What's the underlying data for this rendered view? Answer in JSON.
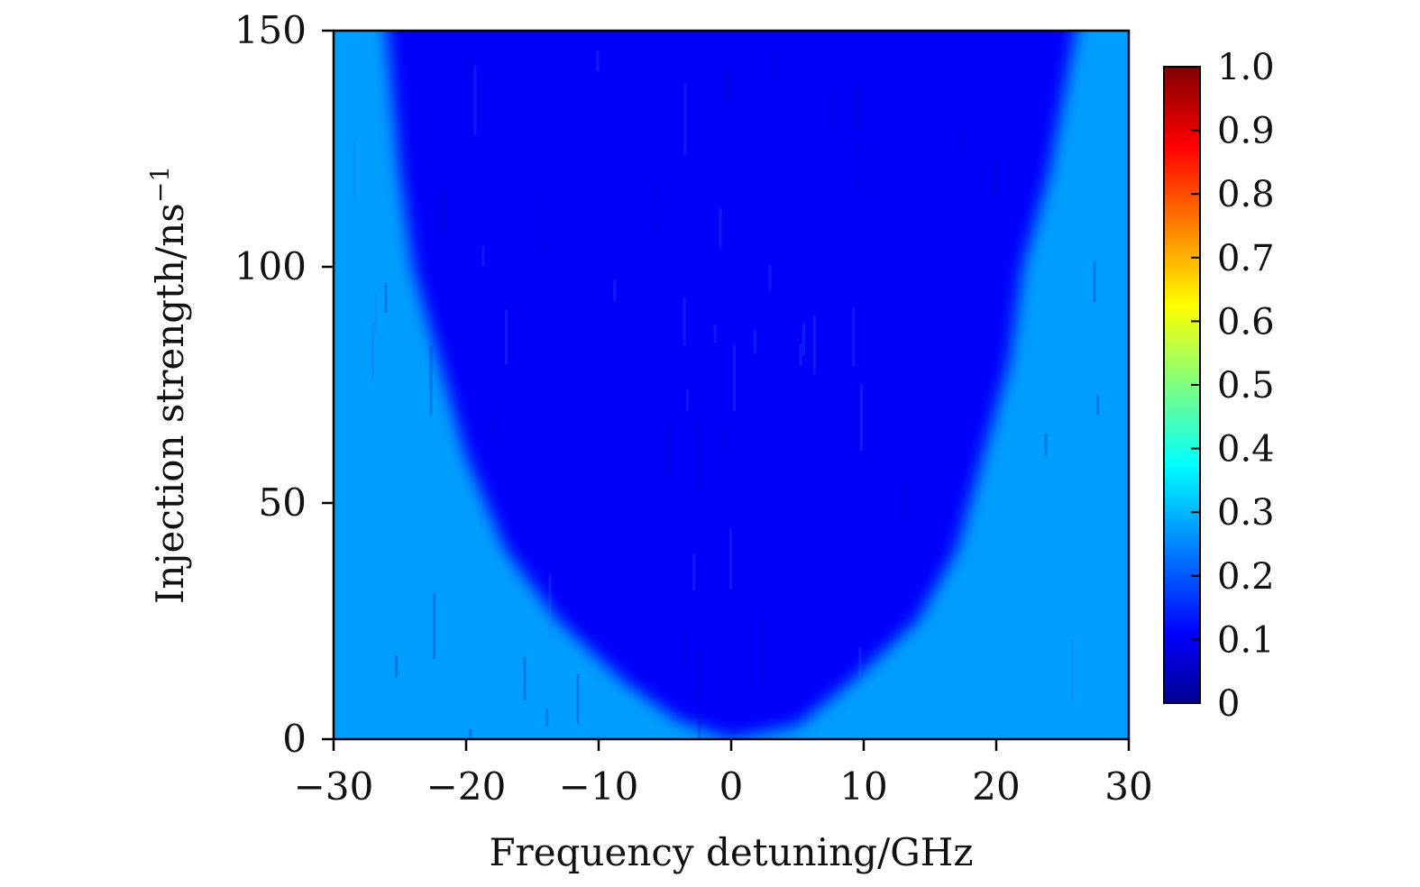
{
  "chart_data": {
    "type": "heatmap",
    "title": "",
    "xlabel": "Frequency detuning/GHz",
    "ylabel_main": "Injection strength/ns",
    "ylabel_sup": "−1",
    "xlim": [
      -30,
      30
    ],
    "ylim": [
      0,
      150
    ],
    "x_ticks": [
      -30,
      -20,
      -10,
      0,
      10,
      20,
      30
    ],
    "x_tick_labels": [
      "−30",
      "−20",
      "−10",
      "0",
      "10",
      "20",
      "30"
    ],
    "y_ticks": [
      0,
      50,
      100,
      150
    ],
    "y_tick_labels": [
      "0",
      "50",
      "100",
      "150"
    ],
    "grid": false,
    "colormap": "jet",
    "colorbar": {
      "range": [
        0,
        1.0
      ],
      "ticks": [
        0,
        0.1,
        0.2,
        0.3,
        0.4,
        0.5,
        0.6,
        0.7,
        0.8,
        0.9,
        1.0
      ],
      "tick_labels": [
        "0",
        "0.1",
        "0.2",
        "0.3",
        "0.4",
        "0.5",
        "0.6",
        "0.7",
        "0.8",
        "0.9",
        "1.0"
      ]
    },
    "region": {
      "description_values": {
        "low_region_value": 0.12,
        "high_region_value": 0.28,
        "low_region_boundary": [
          [
            -26,
            150
          ],
          [
            -25,
            120
          ],
          [
            -24,
            100
          ],
          [
            -22,
            80
          ],
          [
            -20,
            60
          ],
          [
            -17,
            40
          ],
          [
            -13,
            25
          ],
          [
            -8,
            12
          ],
          [
            -4,
            4
          ],
          [
            0,
            0
          ],
          [
            5,
            3
          ],
          [
            9,
            12
          ],
          [
            14,
            25
          ],
          [
            17,
            40
          ],
          [
            19,
            60
          ],
          [
            21,
            80
          ],
          [
            22,
            100
          ],
          [
            24,
            120
          ],
          [
            26,
            150
          ]
        ]
      }
    }
  }
}
